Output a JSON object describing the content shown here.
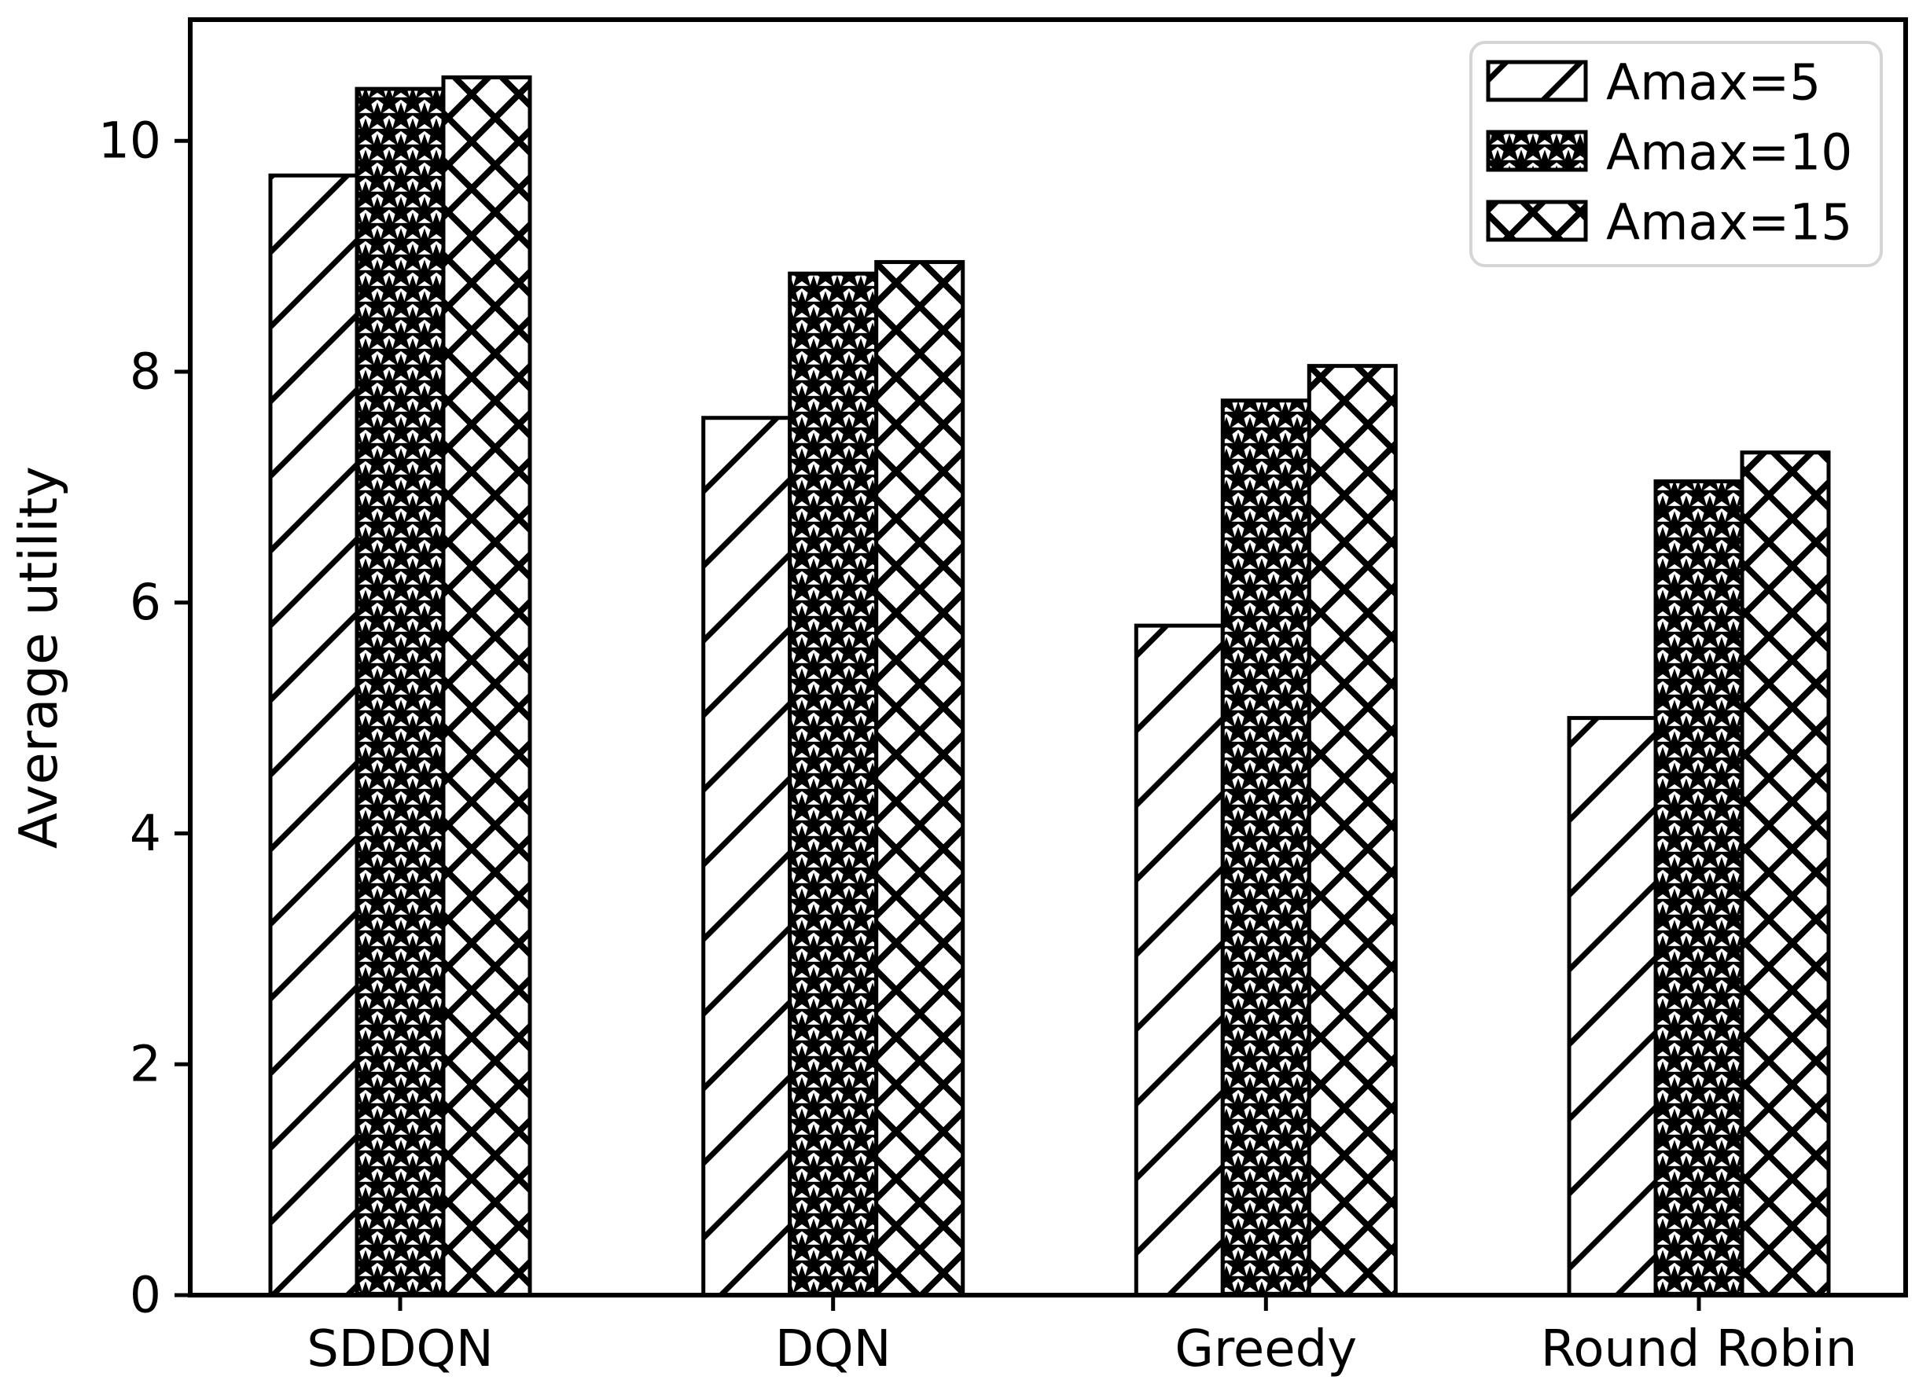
{
  "figure": {
    "background": "#ffffff",
    "foreground": "#000000"
  },
  "chart_data": {
    "type": "bar",
    "title": "",
    "xlabel": "",
    "ylabel": "Average utility",
    "categories": [
      "SDDQN",
      "DQN",
      "Greedy",
      "Round Robin"
    ],
    "series": [
      {
        "name": "Amax=5",
        "hatch": "diagonal",
        "values": [
          9.7,
          7.6,
          5.8,
          5.0
        ]
      },
      {
        "name": "Amax=10",
        "hatch": "stars",
        "values": [
          10.45,
          8.85,
          7.75,
          7.05
        ]
      },
      {
        "name": "Amax=15",
        "hatch": "crosshatch",
        "values": [
          10.55,
          8.95,
          8.05,
          7.3
        ]
      }
    ],
    "yticks": [
      0,
      2,
      4,
      6,
      8,
      10
    ],
    "ylim": [
      0,
      11.05
    ],
    "grid": false,
    "legend_position": "upper right",
    "legend_labels": [
      "Amax=5",
      "Amax=10",
      "Amax=15"
    ],
    "bar_fill": "#ffffff",
    "bar_edge": "#000000",
    "legend_border": "#d5d5d5"
  }
}
